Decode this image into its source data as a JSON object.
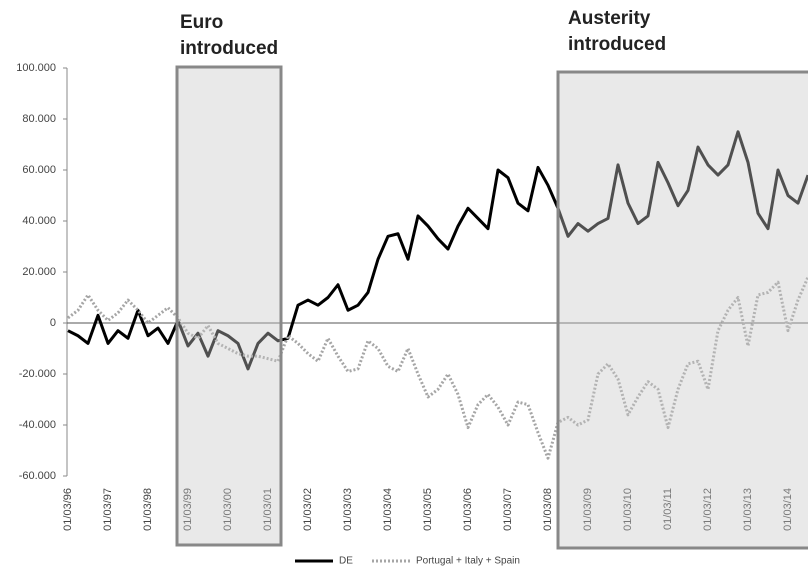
{
  "chart_data": {
    "type": "line",
    "categories": [
      "01/03/96",
      null,
      null,
      null,
      "01/03/97",
      null,
      null,
      null,
      "01/03/98",
      null,
      null,
      null,
      "01/03/99",
      null,
      null,
      null,
      "01/03/00",
      null,
      null,
      null,
      "01/03/01",
      null,
      null,
      null,
      "01/03/02",
      null,
      null,
      null,
      "01/03/03",
      null,
      null,
      null,
      "01/03/04",
      null,
      null,
      null,
      "01/03/05",
      null,
      null,
      null,
      "01/03/06",
      null,
      null,
      null,
      "01/03/07",
      null,
      null,
      null,
      "01/03/08",
      null,
      null,
      null,
      "01/03/09",
      null,
      null,
      null,
      "01/03/10",
      null,
      null,
      null,
      "01/03/11",
      null,
      null,
      null,
      "01/03/12",
      null,
      null,
      null,
      "01/03/13",
      null,
      null,
      null,
      "01/03/14",
      null,
      null
    ],
    "series": [
      {
        "name": "DE",
        "color": "#000000",
        "style": "solid",
        "values": [
          -3000,
          -5000,
          -8000,
          3000,
          -8000,
          -3000,
          -6000,
          5000,
          -5000,
          -2000,
          -8000,
          1000,
          -9000,
          -4000,
          -13000,
          -3000,
          -5000,
          -8000,
          -18000,
          -8000,
          -4000,
          -7000,
          -6000,
          7000,
          9000,
          7000,
          10000,
          15000,
          5000,
          7000,
          12000,
          25000,
          34000,
          35000,
          25000,
          42000,
          38000,
          33000,
          29000,
          38000,
          45000,
          41000,
          37000,
          60000,
          57000,
          47000,
          44000,
          61000,
          54000,
          45000,
          34000,
          39000,
          36000,
          39000,
          41000,
          62000,
          47000,
          39000,
          42000,
          63000,
          55000,
          46000,
          52000,
          69000,
          62000,
          58000,
          62000,
          75000,
          63000,
          43000,
          37000,
          60000,
          50000,
          47000,
          58000
        ]
      },
      {
        "name": "Portugal + Italy + Spain",
        "color": "#a6a6a6",
        "style": "dotted",
        "values": [
          2000,
          5000,
          11000,
          5000,
          1000,
          4000,
          9000,
          5000,
          0,
          3000,
          6000,
          2000,
          -4000,
          -6000,
          -1000,
          -8000,
          -10000,
          -12000,
          -13000,
          -13000,
          -14000,
          -15000,
          -5000,
          -8000,
          -12000,
          -15000,
          -6000,
          -13000,
          -19000,
          -18000,
          -7000,
          -10000,
          -17000,
          -19000,
          -10000,
          -20000,
          -29000,
          -26000,
          -20000,
          -28000,
          -41000,
          -32000,
          -28000,
          -33000,
          -40000,
          -31000,
          -32000,
          -43000,
          -53000,
          -39000,
          -37000,
          -40000,
          -38000,
          -20000,
          -16000,
          -22000,
          -36000,
          -29000,
          -23000,
          -26000,
          -41000,
          -26000,
          -16000,
          -15000,
          -26000,
          -3000,
          5000,
          10000,
          -9000,
          11000,
          12000,
          16000,
          -3000,
          9000,
          18000
        ]
      }
    ],
    "ylim": [
      -60000,
      100000
    ],
    "yticks": [
      {
        "value": -60000,
        "label": "-60.000"
      },
      {
        "value": -40000,
        "label": "-40.000"
      },
      {
        "value": -20000,
        "label": "-20.000"
      },
      0,
      {
        "value": 20000,
        "label": "20.000"
      },
      {
        "value": 40000,
        "label": "40.000"
      },
      {
        "value": 60000,
        "label": "60.000"
      },
      {
        "value": 80000,
        "label": "80.000"
      },
      {
        "value": 100000,
        "label": "100.000"
      }
    ],
    "annotations": [
      {
        "text": "Euro introduced"
      },
      {
        "text": "Austerity introduced"
      }
    ],
    "legend": "bottom"
  }
}
